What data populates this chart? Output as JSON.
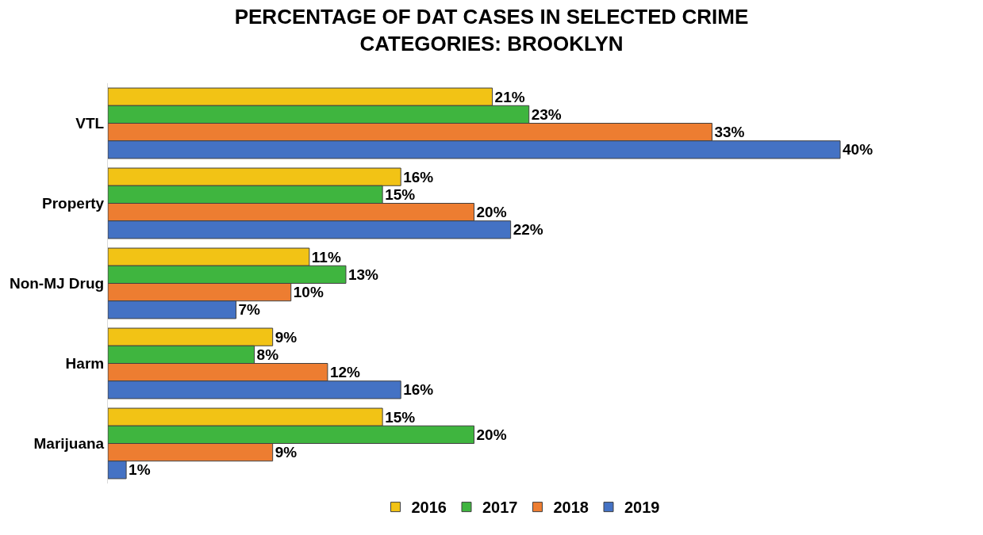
{
  "chart_data": {
    "type": "bar",
    "orientation": "horizontal",
    "title": "PERCENTAGE OF DAT CASES IN SELECTED CRIME\nCATEGORIES: BROOKLYN",
    "categories": [
      "VTL",
      "Property",
      "Non-MJ Drug",
      "Harm",
      "Marijuana"
    ],
    "series": [
      {
        "name": "2016",
        "color": "#f2c315",
        "values": [
          21,
          16,
          11,
          9,
          15
        ],
        "value_labels": [
          "21%",
          "16%",
          "11%",
          "9%",
          "15%"
        ]
      },
      {
        "name": "2017",
        "color": "#3fb53f",
        "values": [
          23,
          15,
          13,
          8,
          20
        ],
        "value_labels": [
          "23%",
          "15%",
          "13%",
          "8%",
          "20%"
        ]
      },
      {
        "name": "2018",
        "color": "#ed7d31",
        "values": [
          33,
          20,
          10,
          12,
          9
        ],
        "value_labels": [
          "33%",
          "20%",
          "10%",
          "12%",
          "9%"
        ]
      },
      {
        "name": "2019",
        "color": "#4472c4",
        "values": [
          40,
          22,
          7,
          16,
          1
        ],
        "value_labels": [
          "40%",
          "22%",
          "7%",
          "16%",
          "1%"
        ]
      }
    ],
    "legend": "bottom"
  }
}
